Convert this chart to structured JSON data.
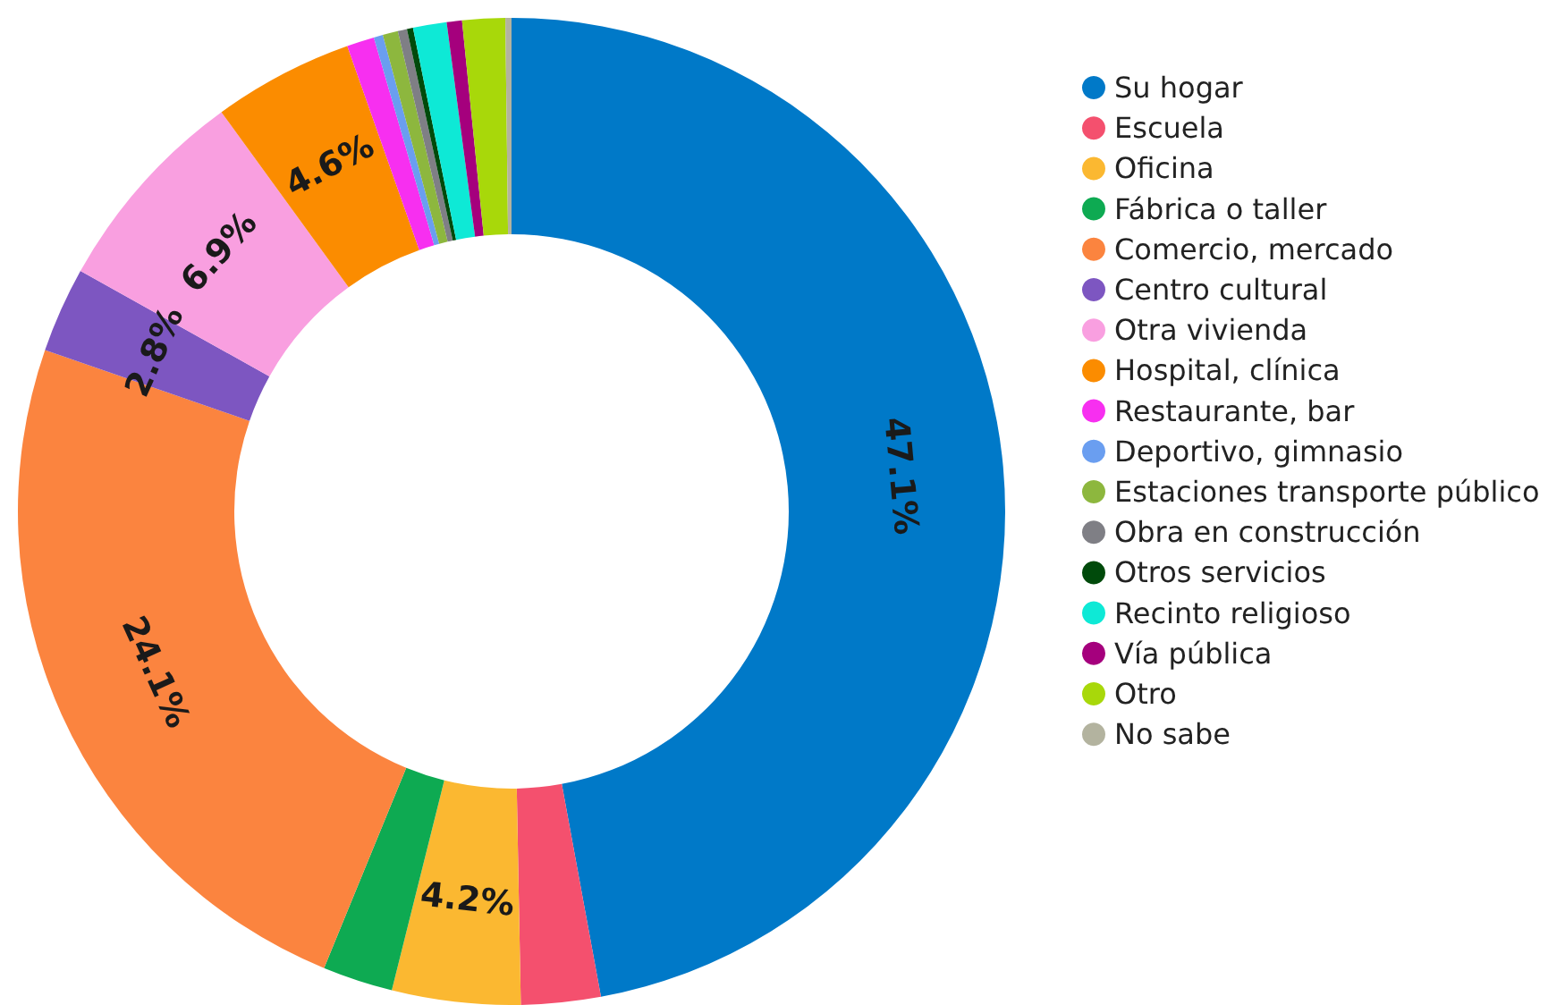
{
  "chart_data": {
    "type": "donut",
    "categories": [
      "Su hogar",
      "Escuela",
      "Oficina",
      "Fábrica o taller",
      "Comercio, mercado",
      "Centro cultural",
      "Otra vivienda",
      "Hospital, clínica",
      "Restaurante, bar",
      "Deportivo, gimnasio",
      "Estaciones transporte público",
      "Obra en construcción",
      "Otros servicios",
      "Recinto religioso",
      "Vía pública",
      "Otro",
      "No sabe"
    ],
    "values": [
      47.1,
      2.6,
      4.2,
      2.3,
      24.1,
      2.8,
      6.9,
      4.6,
      0.9,
      0.3,
      0.5,
      0.3,
      0.2,
      1.1,
      0.5,
      1.4,
      0.2
    ],
    "value_labels": [
      "47.1%",
      null,
      "4.2%",
      null,
      "24.1%",
      "2.8%",
      "6.9%",
      "4.6%",
      null,
      null,
      null,
      null,
      null,
      null,
      null,
      null,
      null
    ],
    "colors": [
      "#0079c8",
      "#f4506e",
      "#fbb831",
      "#0eaa52",
      "#fb843f",
      "#7d56c1",
      "#f99fe0",
      "#fb8c00",
      "#f72ff0",
      "#6a9ef0",
      "#8db73e",
      "#7f7f85",
      "#004a0b",
      "#0ee9d6",
      "#a5007d",
      "#a8d80a",
      "#b3b39f"
    ],
    "legend": "right"
  }
}
